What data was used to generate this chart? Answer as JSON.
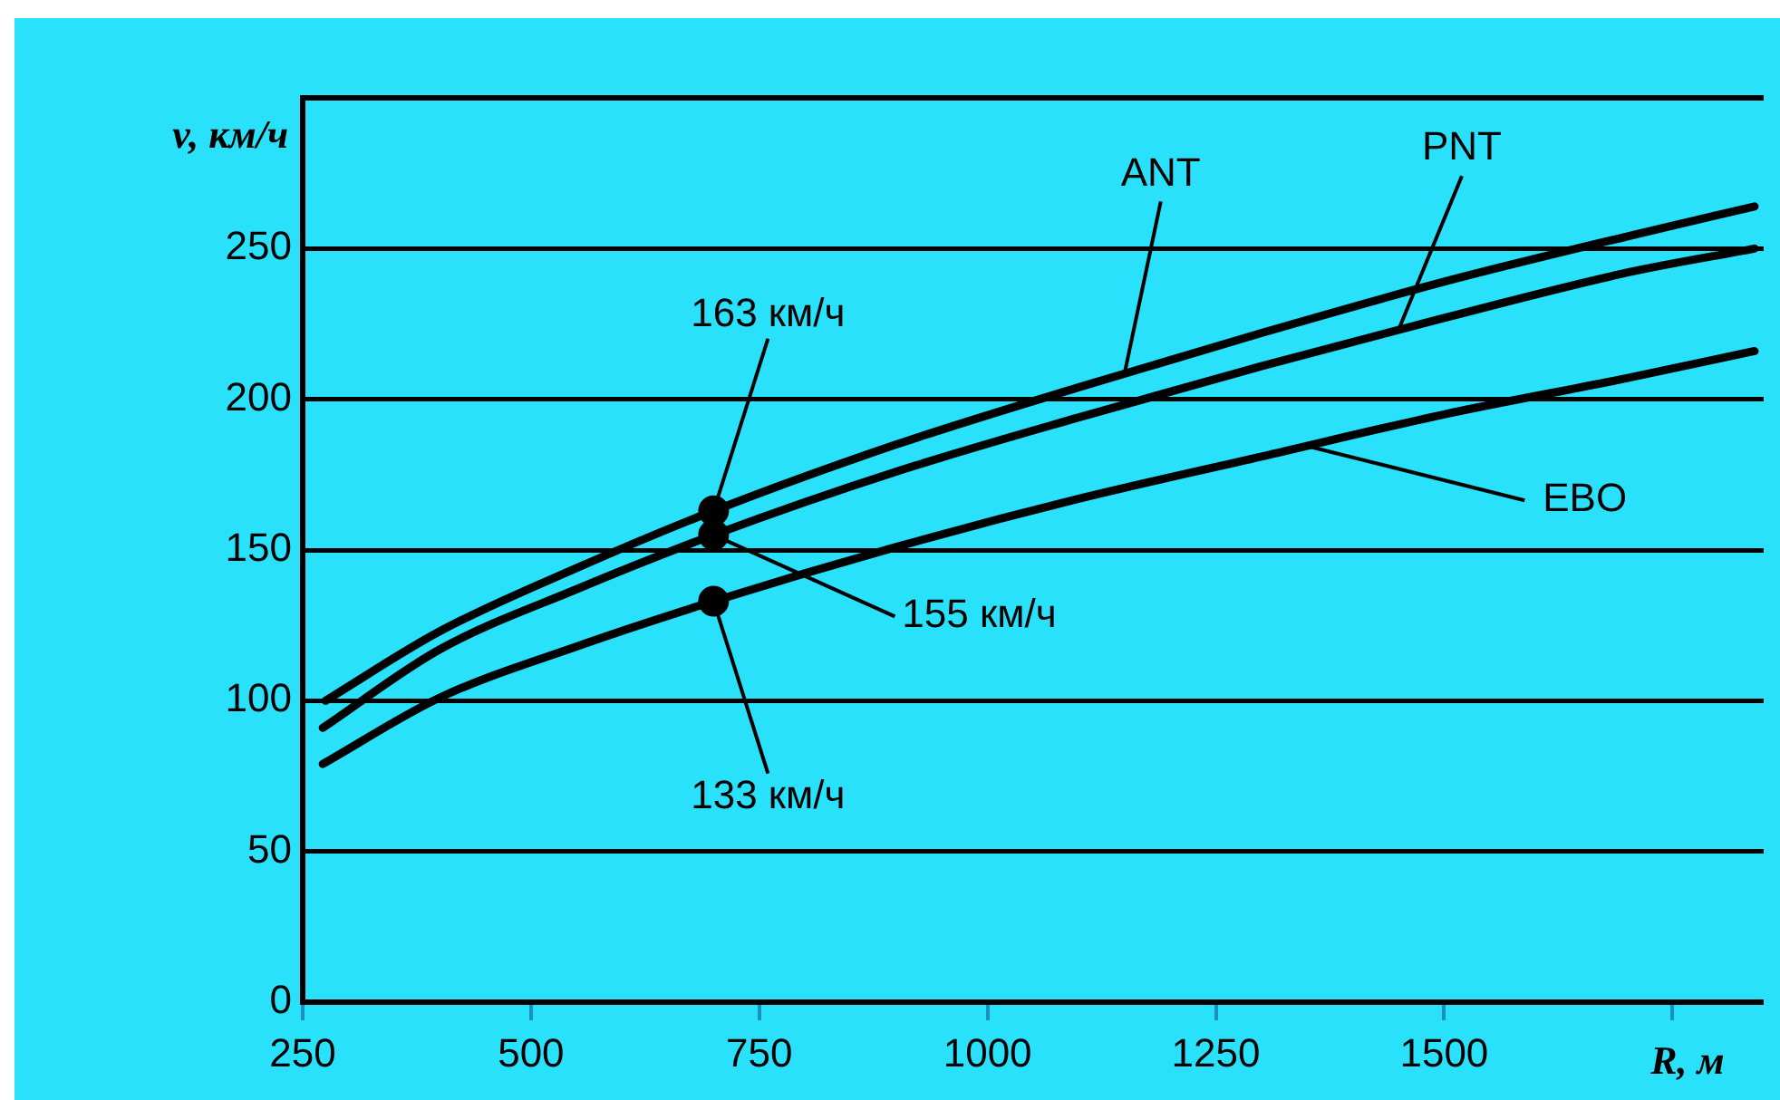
{
  "chart_data": {
    "type": "line",
    "xlabel": "R, м",
    "ylabel": "v, км/ч",
    "xlim": [
      250,
      1850
    ],
    "xticks": [
      250,
      500,
      750,
      1000,
      1250,
      1500,
      {
        "value": 1750,
        "label": null
      }
    ],
    "ylim": [
      0,
      300
    ],
    "yticks": [
      0,
      50,
      100,
      150,
      200,
      250
    ],
    "grid": "y",
    "legend": false,
    "marker": "none",
    "line_style": "solid",
    "series": [
      {
        "name": "ANT",
        "color": "#000000",
        "x": [
          275,
          400,
          550,
          700,
          900,
          1100,
          1300,
          1500,
          1700,
          1840
        ],
        "values": [
          100,
          123,
          144,
          163,
          185,
          204,
          222,
          239,
          254,
          264
        ]
      },
      {
        "name": "PNT",
        "color": "#000000",
        "x": [
          272,
          400,
          550,
          700,
          900,
          1100,
          1300,
          1500,
          1700,
          1840
        ],
        "values": [
          91,
          117,
          137,
          155,
          176,
          194,
          211,
          227,
          242,
          250
        ]
      },
      {
        "name": "EBO",
        "color": "#000000",
        "x": [
          272,
          400,
          550,
          700,
          900,
          1100,
          1300,
          1500,
          1700,
          1840
        ],
        "values": [
          79,
          101,
          118,
          133,
          151,
          167,
          181,
          195,
          207,
          216
        ]
      },
      {
        "type": "scatter",
        "marker": "circle",
        "color": "#000000",
        "x": [
          700,
          700,
          700
        ],
        "values": [
          163,
          155,
          133
        ],
        "value_labels": [
          "163 км/ч",
          "155 км/ч",
          "133 км/ч"
        ]
      }
    ]
  }
}
